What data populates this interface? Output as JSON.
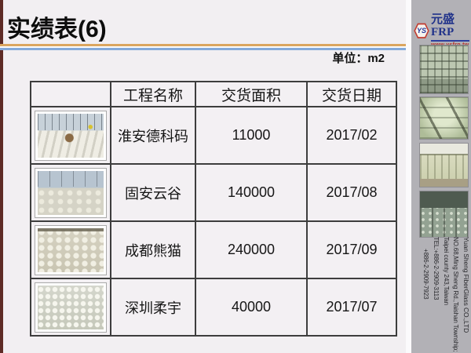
{
  "slide": {
    "title": "实绩表(6)",
    "unit_label": "单位：m2"
  },
  "table": {
    "headers": [
      "",
      "工程名称",
      "交货面积",
      "交货日期"
    ],
    "rows": [
      {
        "photo": "construction-site-trusses-photo",
        "name": "淮安德科码",
        "area": "11000",
        "date": "2017/02"
      },
      {
        "photo": "cylinder-field-cranes-photo",
        "name": "固安云谷",
        "area": "140000",
        "date": "2017/08"
      },
      {
        "photo": "aerial-tank-rows-photo",
        "name": "成都熊猫",
        "area": "240000",
        "date": "2017/09"
      },
      {
        "photo": "dense-cylinder-rows-photo",
        "name": "深圳柔宇",
        "area": "40000",
        "date": "2017/07"
      }
    ]
  },
  "sidebar": {
    "logo": {
      "monogram": "YS",
      "brand": "元盛FRP",
      "website": "www.ysfrp.tw"
    },
    "photos": [
      "ceiling-grid-photo",
      "frp-tank-closeup-photo",
      "tank-farm-photo",
      "factory-interior-photo"
    ],
    "company_info": [
      "Yuan Sheng FiberGlass CO.,LTD",
      "NO.68,Ming Sheng Rd.,Taishan Township;",
      "Taipei county 243,Taiwan",
      "TEL:+886-2-2909-3113",
      "+886-2-2909-7923"
    ]
  },
  "colors": {
    "background": "#f2eff2",
    "left_strip_maroon": "#5e2b26",
    "separator_orange": "#dba55e",
    "separator_blue": "#84a9da",
    "table_border": "#3d3d3d",
    "sidebar_gray": "#b2b1b6",
    "logo_navy": "#21338a",
    "logo_red": "#c23b2f",
    "url_red": "#b63226"
  }
}
